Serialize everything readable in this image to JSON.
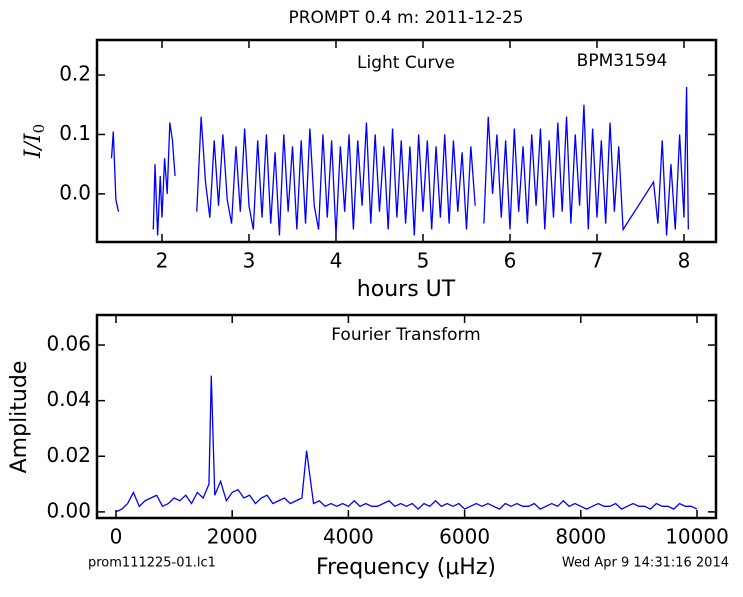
{
  "title": "PROMPT 0.4 m:  2011-12-25",
  "footer": {
    "left": "prom111225-01.lc1",
    "right": "Wed Apr  9 14:31:16 2014"
  },
  "chart_data": [
    {
      "type": "line",
      "annotations": [
        "Light Curve",
        "BPM31594"
      ],
      "xlabel": "hours UT",
      "ylabel": {
        "text": "I/I",
        "subscript": "0"
      },
      "xlim": [
        1.253,
        8.368
      ],
      "ylim": [
        -0.081,
        0.259
      ],
      "xticks": [
        2,
        3,
        4,
        5,
        6,
        7,
        8
      ],
      "yticks": [
        {
          "value": 0.0,
          "label": "0.0"
        },
        0.1,
        0.2
      ],
      "series": [
        {
          "color": "#0000ff",
          "x": [
            1.42,
            1.44,
            1.47,
            1.5,
            1.7,
            1.9,
            1.92,
            1.95,
            1.98,
            2.0,
            2.03,
            2.06,
            2.09,
            2.12,
            2.15,
            2.3,
            2.4,
            2.45,
            2.5,
            2.55,
            2.6,
            2.65,
            2.7,
            2.75,
            2.8,
            2.85,
            2.9,
            2.95,
            3.0,
            3.05,
            3.1,
            3.15,
            3.2,
            3.25,
            3.3,
            3.35,
            3.4,
            3.45,
            3.5,
            3.55,
            3.6,
            3.65,
            3.7,
            3.75,
            3.8,
            3.85,
            3.9,
            3.95,
            4.0,
            4.05,
            4.1,
            4.15,
            4.2,
            4.25,
            4.3,
            4.35,
            4.4,
            4.45,
            4.5,
            4.55,
            4.6,
            4.65,
            4.7,
            4.75,
            4.8,
            4.85,
            4.9,
            4.95,
            5.0,
            5.05,
            5.1,
            5.15,
            5.2,
            5.25,
            5.3,
            5.35,
            5.4,
            5.45,
            5.5,
            5.55,
            5.6,
            5.65,
            5.7,
            5.75,
            5.8,
            5.85,
            5.9,
            5.95,
            6.0,
            6.05,
            6.1,
            6.15,
            6.2,
            6.25,
            6.3,
            6.35,
            6.4,
            6.45,
            6.5,
            6.55,
            6.6,
            6.65,
            6.7,
            6.75,
            6.8,
            6.85,
            6.9,
            6.95,
            7.0,
            7.05,
            7.1,
            7.15,
            7.2,
            7.25,
            7.3,
            7.65,
            7.7,
            7.75,
            7.8,
            7.85,
            7.9,
            7.95,
            8.0,
            8.03,
            8.05
          ],
          "values": [
            0.06,
            0.105,
            -0.01,
            -0.03,
            null,
            -0.06,
            0.05,
            -0.07,
            0.03,
            -0.04,
            0.06,
            0.0,
            0.12,
            0.09,
            0.03,
            null,
            -0.03,
            0.13,
            0.02,
            -0.04,
            0.09,
            -0.02,
            0.1,
            -0.01,
            -0.05,
            0.08,
            -0.03,
            0.11,
            -0.02,
            -0.06,
            0.09,
            -0.04,
            0.1,
            -0.05,
            0.07,
            -0.07,
            0.1,
            -0.03,
            0.08,
            -0.06,
            0.09,
            -0.05,
            0.11,
            -0.02,
            -0.06,
            0.1,
            -0.04,
            0.09,
            -0.07,
            0.08,
            -0.03,
            0.1,
            -0.06,
            0.09,
            -0.02,
            0.12,
            -0.05,
            0.1,
            -0.03,
            0.08,
            -0.06,
            0.11,
            -0.04,
            0.09,
            -0.05,
            0.08,
            -0.07,
            0.1,
            -0.03,
            0.09,
            -0.06,
            0.08,
            -0.04,
            0.1,
            -0.05,
            0.09,
            -0.03,
            0.07,
            -0.06,
            0.08,
            -0.02,
            null,
            -0.05,
            0.13,
            0.0,
            0.1,
            -0.04,
            0.09,
            -0.06,
            0.11,
            -0.03,
            0.08,
            -0.05,
            0.1,
            -0.02,
            0.11,
            -0.06,
            0.09,
            -0.04,
            0.12,
            -0.03,
            0.13,
            -0.05,
            0.1,
            -0.02,
            0.15,
            -0.06,
            0.11,
            -0.04,
            0.09,
            -0.05,
            0.12,
            -0.03,
            0.08,
            -0.06,
            0.02,
            -0.05,
            0.09,
            -0.07,
            0.05,
            -0.06,
            0.1,
            -0.04,
            0.18,
            -0.06
          ]
        }
      ]
    },
    {
      "type": "line",
      "annotations": [
        "Fourier Transform"
      ],
      "xlabel": "Frequency (μHz)",
      "ylabel": {
        "text": "Amplitude"
      },
      "xlim": [
        -327,
        10327
      ],
      "ylim": [
        -0.0022,
        0.0708
      ],
      "xticks": [
        0,
        2000,
        4000,
        6000,
        8000,
        10000
      ],
      "yticks": [
        {
          "value": 0.0,
          "label": "0.00"
        },
        {
          "value": 0.02,
          "label": "0.02"
        },
        {
          "value": 0.04,
          "label": "0.04"
        },
        {
          "value": 0.06,
          "label": "0.06"
        }
      ],
      "series": [
        {
          "color": "#0000ff",
          "x": [
            0,
            100,
            200,
            300,
            400,
            500,
            600,
            700,
            800,
            900,
            1000,
            1100,
            1200,
            1300,
            1400,
            1500,
            1600,
            1640,
            1700,
            1800,
            1900,
            2000,
            2100,
            2200,
            2300,
            2400,
            2500,
            2600,
            2700,
            2800,
            2900,
            3000,
            3100,
            3200,
            3280,
            3400,
            3500,
            3600,
            3700,
            3800,
            3900,
            4000,
            4100,
            4200,
            4300,
            4400,
            4500,
            4600,
            4700,
            4800,
            4900,
            5000,
            5100,
            5200,
            5300,
            5400,
            5500,
            5600,
            5700,
            5800,
            5900,
            6000,
            6100,
            6200,
            6300,
            6400,
            6500,
            6600,
            6700,
            6800,
            6900,
            7000,
            7100,
            7200,
            7300,
            7400,
            7500,
            7600,
            7700,
            7800,
            7900,
            8000,
            8100,
            8200,
            8300,
            8400,
            8500,
            8600,
            8700,
            8800,
            8900,
            9000,
            9100,
            9200,
            9300,
            9400,
            9500,
            9600,
            9700,
            9800,
            9900,
            10000
          ],
          "values": [
            0.0,
            0.001,
            0.003,
            0.007,
            0.002,
            0.004,
            0.005,
            0.006,
            0.002,
            0.003,
            0.005,
            0.004,
            0.006,
            0.003,
            0.007,
            0.005,
            0.01,
            0.049,
            0.006,
            0.011,
            0.004,
            0.007,
            0.008,
            0.005,
            0.006,
            0.003,
            0.005,
            0.006,
            0.003,
            0.004,
            0.005,
            0.003,
            0.004,
            0.005,
            0.022,
            0.003,
            0.004,
            0.002,
            0.003,
            0.002,
            0.003,
            0.002,
            0.004,
            0.002,
            0.003,
            0.002,
            0.002,
            0.003,
            0.004,
            0.002,
            0.003,
            0.002,
            0.003,
            0.001,
            0.003,
            0.002,
            0.004,
            0.002,
            0.003,
            0.002,
            0.003,
            0.001,
            0.002,
            0.003,
            0.002,
            0.003,
            0.002,
            0.001,
            0.003,
            0.002,
            0.003,
            0.002,
            0.002,
            0.003,
            0.001,
            0.002,
            0.003,
            0.002,
            0.004,
            0.002,
            0.003,
            0.002,
            0.001,
            0.002,
            0.003,
            0.002,
            0.002,
            0.003,
            0.001,
            0.002,
            0.003,
            0.002,
            0.002,
            0.001,
            0.003,
            0.002,
            0.002,
            0.001,
            0.003,
            0.002,
            0.002,
            0.001
          ]
        }
      ]
    }
  ]
}
